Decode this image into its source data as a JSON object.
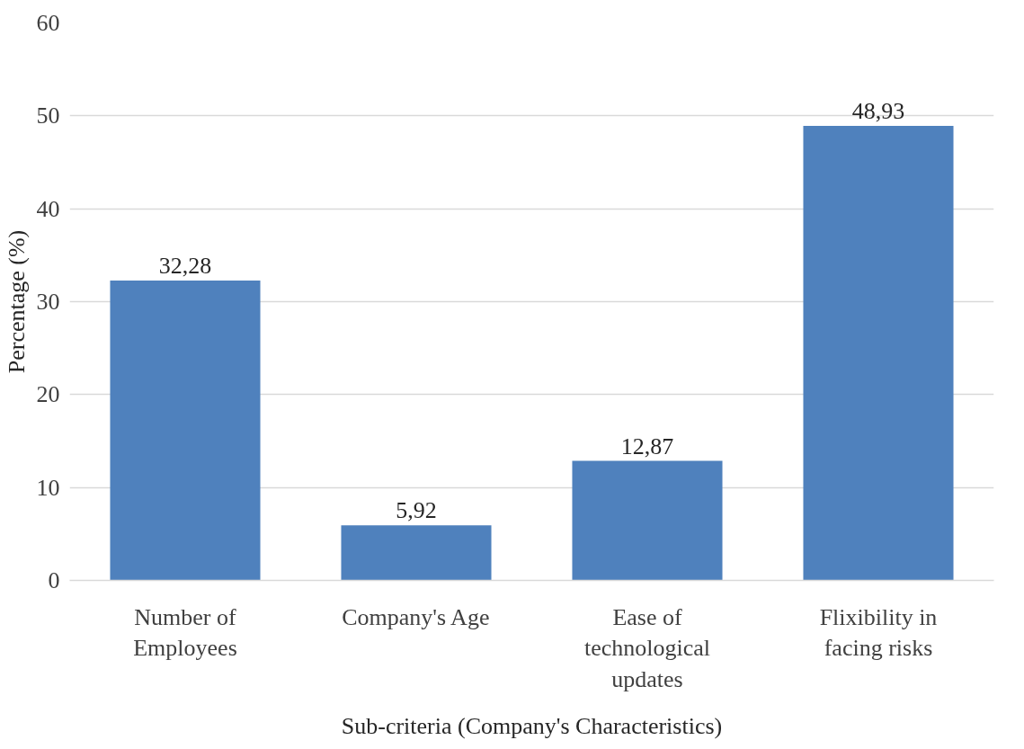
{
  "chart_data": {
    "type": "bar",
    "xlabel": "Sub-criteria (Company's Characteristics)",
    "ylabel": "Percentage (%)",
    "categories": [
      "Number of Employees",
      "Company's Age",
      "Ease of technological updates",
      "Flixibility in facing risks"
    ],
    "values": [
      32.28,
      5.92,
      12.87,
      48.93
    ],
    "value_labels": [
      "32,28",
      "5,92",
      "12,87",
      "48,93"
    ],
    "color": "#4f81bd",
    "ylim": [
      0,
      60
    ],
    "yticks": [
      0,
      10,
      20,
      30,
      40,
      50,
      60
    ],
    "grid": "y"
  }
}
